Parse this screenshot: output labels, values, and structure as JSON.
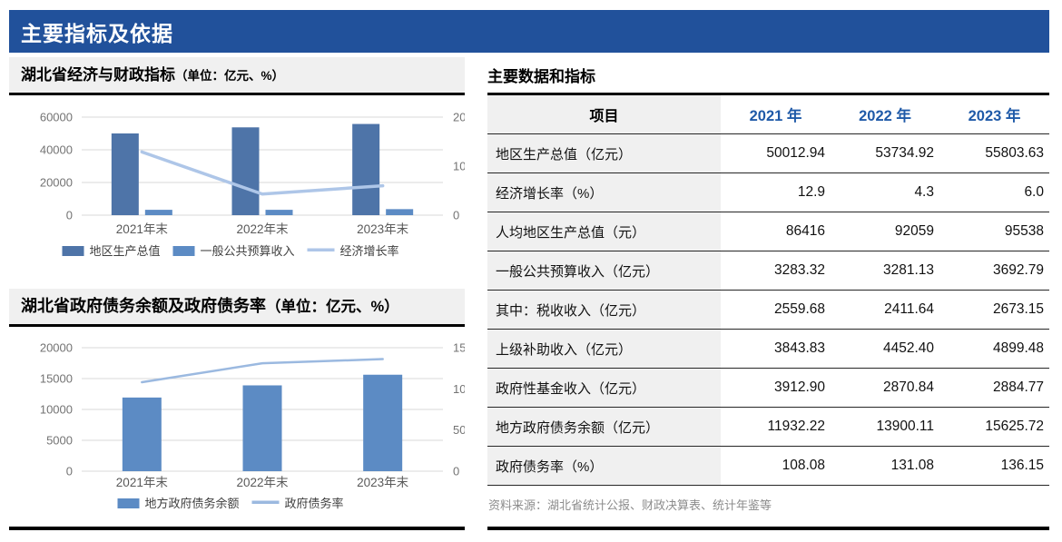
{
  "header": {
    "title": "主要指标及依据"
  },
  "colors": {
    "header_bg": "#21519B",
    "year_header_text": "#1F5AA8",
    "panel_bg": "#F0F0F0",
    "bar_dark": "#4E74A8",
    "bar_medium": "#5C8BC4",
    "line_light": "#AEC6E8",
    "line_medium": "#9BB9E0",
    "gridline": "#D9D9D9",
    "axis_text": "#737373",
    "xlabel_text": "#595959",
    "legend_text": "#404040",
    "source_text": "#8C8C8C"
  },
  "chart_data": [
    {
      "type": "bar+line",
      "title": "湖北省经济与财政指标",
      "unit": "（单位：亿元、%）",
      "categories": [
        "2021年末",
        "2022年末",
        "2023年末"
      ],
      "left_axis": {
        "ticks": [
          0,
          20000,
          40000,
          60000
        ],
        "max": 60000
      },
      "right_axis": {
        "ticks": [
          0,
          10,
          20
        ],
        "max": 20
      },
      "grid": true,
      "legend_position": "bottom",
      "series": [
        {
          "name": "地区生产总值",
          "type": "bar",
          "color_key": "bar_dark",
          "axis": "left",
          "values": [
            50012.94,
            53734.92,
            55803.63
          ]
        },
        {
          "name": "一般公共预算收入",
          "type": "bar",
          "color_key": "bar_medium",
          "axis": "left",
          "values": [
            3283.32,
            3281.13,
            3692.79
          ]
        },
        {
          "name": "经济增长率",
          "type": "line",
          "color_key": "line_light",
          "axis": "right",
          "values": [
            12.9,
            4.3,
            6.0
          ]
        }
      ]
    },
    {
      "type": "bar+line",
      "title": "湖北省政府债务余额及政府债务率",
      "unit": "（单位：亿元、%）",
      "categories": [
        "2021年末",
        "2022年末",
        "2023年末"
      ],
      "left_axis": {
        "ticks": [
          0,
          5000,
          10000,
          15000,
          20000
        ],
        "max": 20000
      },
      "right_axis": {
        "ticks": [
          0,
          50,
          100,
          150
        ],
        "max": 150
      },
      "grid": true,
      "legend_position": "bottom",
      "series": [
        {
          "name": "地方政府债务余额",
          "type": "bar",
          "color_key": "bar_medium",
          "axis": "left",
          "values": [
            11932.22,
            13900.11,
            15625.72
          ]
        },
        {
          "name": "政府债务率",
          "type": "line",
          "color_key": "line_medium",
          "axis": "right",
          "values": [
            108.08,
            131.08,
            136.15
          ]
        }
      ]
    }
  ],
  "table": {
    "title": "主要数据和指标",
    "columns": [
      "项目",
      "2021 年",
      "2022 年",
      "2023 年"
    ],
    "rows": [
      {
        "label": "地区生产总值（亿元）",
        "values": [
          "50012.94",
          "53734.92",
          "55803.63"
        ]
      },
      {
        "label": "经济增长率（%）",
        "values": [
          "12.9",
          "4.3",
          "6.0"
        ]
      },
      {
        "label": "人均地区生产总值（元）",
        "values": [
          "86416",
          "92059",
          "95538"
        ]
      },
      {
        "label": "一般公共预算收入（亿元）",
        "values": [
          "3283.32",
          "3281.13",
          "3692.79"
        ]
      },
      {
        "label": "其中：税收收入（亿元）",
        "values": [
          "2559.68",
          "2411.64",
          "2673.15"
        ]
      },
      {
        "label": "上级补助收入（亿元）",
        "values": [
          "3843.83",
          "4452.40",
          "4899.48"
        ]
      },
      {
        "label": "政府性基金收入（亿元）",
        "values": [
          "3912.90",
          "2870.84",
          "2884.77"
        ]
      },
      {
        "label": "地方政府债务余额（亿元）",
        "values": [
          "11932.22",
          "13900.11",
          "15625.72"
        ]
      },
      {
        "label": "政府债务率（%）",
        "values": [
          "108.08",
          "131.08",
          "136.15"
        ]
      }
    ],
    "source": "资料来源：湖北省统计公报、财政决算表、统计年鉴等"
  }
}
